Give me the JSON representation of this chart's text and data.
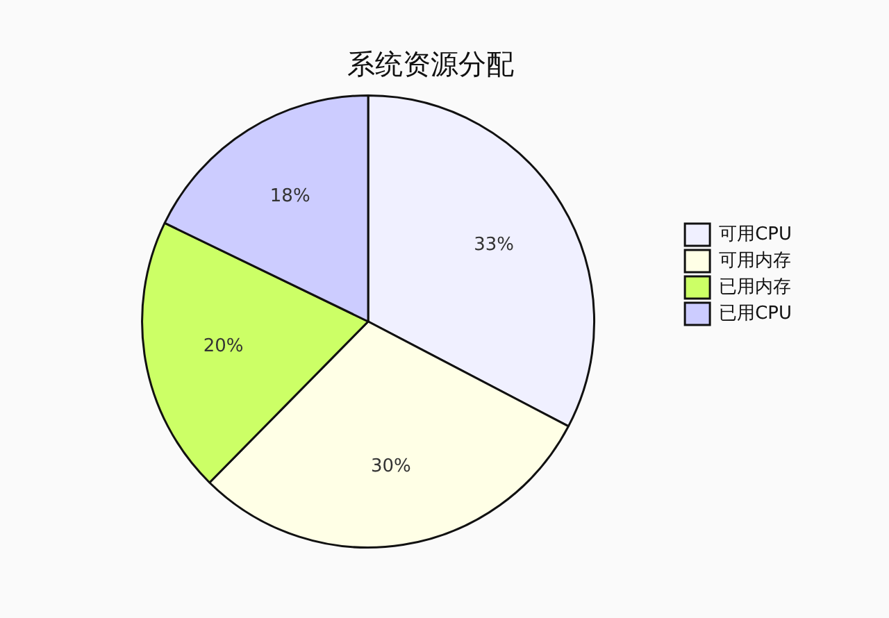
{
  "chart_data": {
    "type": "pie",
    "title": "系统资源分配",
    "categories": [
      "可用CPU",
      "可用内存",
      "已用内存",
      "已用CPU"
    ],
    "values": [
      33,
      30,
      20,
      18
    ],
    "value_labels": [
      "33%",
      "30%",
      "20%",
      "18%"
    ],
    "colors": [
      "#f0f0ff",
      "#ffffe6",
      "#ccff66",
      "#ccccff"
    ],
    "legend": "right"
  }
}
